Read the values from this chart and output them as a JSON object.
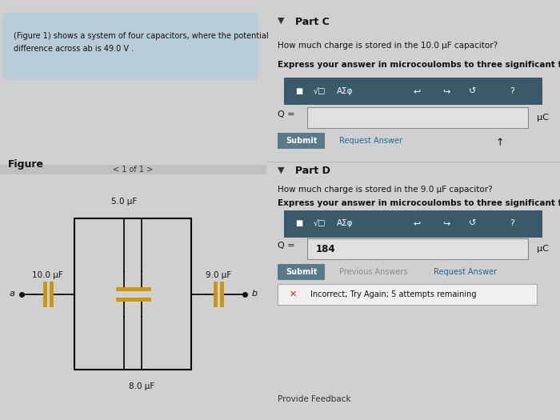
{
  "bg_color": "#d0d0d0",
  "left_panel_bg": "#e8e8e8",
  "right_panel_bg": "#d8d8d8",
  "header_bg": "#b8ccd8",
  "header_text_line1": "(Figure 1) shows a system of four capacitors, where the potential",
  "header_text_line2": "difference across ab is 49.0 V .",
  "figure_label": "Figure",
  "nav_text": "1 of 1",
  "capacitors": {
    "C1": {
      "label": "10.0 μF",
      "position": "left"
    },
    "C2": {
      "label": "5.0 μF",
      "position": "top"
    },
    "C3": {
      "label": "8.0 μF",
      "position": "bottom"
    },
    "C4": {
      "label": "9.0 μF",
      "position": "right"
    }
  },
  "node_a": "a",
  "node_b": "b",
  "part_c_title": "Part C",
  "part_c_q": "How much charge is stored in the 10.0 μF capacitor?",
  "part_c_bold": "Express your answer in microcoulombs to three significant figures.",
  "part_c_unit": "μC",
  "part_d_title": "Part D",
  "part_d_q": "How much charge is stored in the 9.0 μF capacitor?",
  "part_d_bold": "Express your answer in microcoulombs to three significant figures.",
  "part_d_answer": "184",
  "part_d_unit": "μC",
  "submit_bg": "#5a7a8a",
  "submit_text_color": "#ffffff",
  "toolbar_bg": "#3a5a6a",
  "incorrect_text": "Incorrect; Try Again; 5 attempts remaining",
  "provide_feedback": "Provide Feedback",
  "request_answer_color": "#1a6a9a",
  "previous_answers_color": "#8a8a8a",
  "cap_plate_color": "#c8960a",
  "cap_line_color": "#000000",
  "box_color": "#000000",
  "wire_color": "#000000"
}
